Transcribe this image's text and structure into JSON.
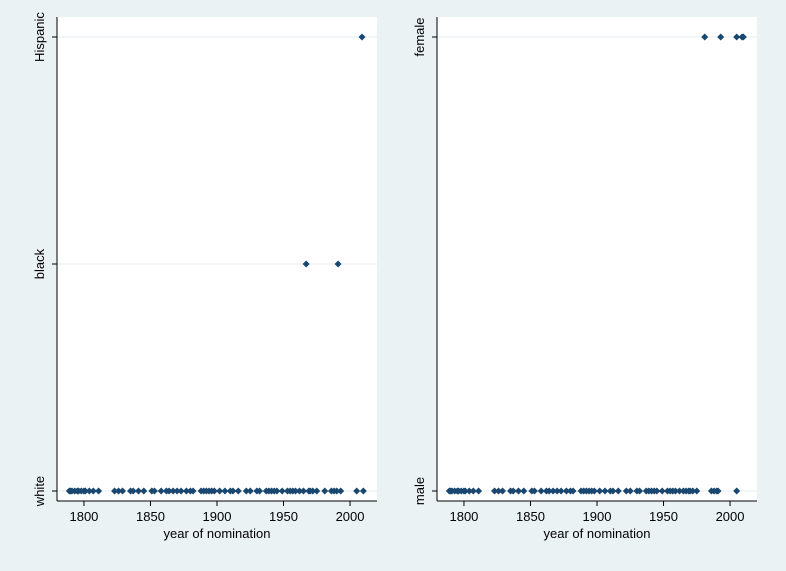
{
  "colors": {
    "background": "#eaf2f3",
    "plot_area": "#ffffff",
    "marker": "#1a476f"
  },
  "chart_data": [
    {
      "type": "scatter",
      "title": "",
      "xlabel": "year of nomination",
      "ylabel": "",
      "xlim": [
        1785,
        2015
      ],
      "xticks": [
        1800,
        1850,
        1900,
        1950,
        2000
      ],
      "y_categories": [
        "white",
        "black",
        "Hispanic"
      ],
      "grid": "horizontal",
      "marker": "diamond",
      "series": [
        {
          "points": [
            {
              "x": 1789,
              "y": "white"
            },
            {
              "x": 1790,
              "y": "white"
            },
            {
              "x": 1791,
              "y": "white"
            },
            {
              "x": 1793,
              "y": "white"
            },
            {
              "x": 1795,
              "y": "white"
            },
            {
              "x": 1796,
              "y": "white"
            },
            {
              "x": 1798,
              "y": "white"
            },
            {
              "x": 1800,
              "y": "white"
            },
            {
              "x": 1801,
              "y": "white"
            },
            {
              "x": 1804,
              "y": "white"
            },
            {
              "x": 1807,
              "y": "white"
            },
            {
              "x": 1811,
              "y": "white"
            },
            {
              "x": 1823,
              "y": "white"
            },
            {
              "x": 1826,
              "y": "white"
            },
            {
              "x": 1829,
              "y": "white"
            },
            {
              "x": 1835,
              "y": "white"
            },
            {
              "x": 1837,
              "y": "white"
            },
            {
              "x": 1841,
              "y": "white"
            },
            {
              "x": 1845,
              "y": "white"
            },
            {
              "x": 1851,
              "y": "white"
            },
            {
              "x": 1853,
              "y": "white"
            },
            {
              "x": 1858,
              "y": "white"
            },
            {
              "x": 1862,
              "y": "white"
            },
            {
              "x": 1864,
              "y": "white"
            },
            {
              "x": 1867,
              "y": "white"
            },
            {
              "x": 1870,
              "y": "white"
            },
            {
              "x": 1873,
              "y": "white"
            },
            {
              "x": 1877,
              "y": "white"
            },
            {
              "x": 1880,
              "y": "white"
            },
            {
              "x": 1882,
              "y": "white"
            },
            {
              "x": 1888,
              "y": "white"
            },
            {
              "x": 1890,
              "y": "white"
            },
            {
              "x": 1892,
              "y": "white"
            },
            {
              "x": 1894,
              "y": "white"
            },
            {
              "x": 1896,
              "y": "white"
            },
            {
              "x": 1898,
              "y": "white"
            },
            {
              "x": 1902,
              "y": "white"
            },
            {
              "x": 1906,
              "y": "white"
            },
            {
              "x": 1910,
              "y": "white"
            },
            {
              "x": 1912,
              "y": "white"
            },
            {
              "x": 1916,
              "y": "white"
            },
            {
              "x": 1922,
              "y": "white"
            },
            {
              "x": 1925,
              "y": "white"
            },
            {
              "x": 1930,
              "y": "white"
            },
            {
              "x": 1932,
              "y": "white"
            },
            {
              "x": 1937,
              "y": "white"
            },
            {
              "x": 1939,
              "y": "white"
            },
            {
              "x": 1941,
              "y": "white"
            },
            {
              "x": 1943,
              "y": "white"
            },
            {
              "x": 1945,
              "y": "white"
            },
            {
              "x": 1949,
              "y": "white"
            },
            {
              "x": 1953,
              "y": "white"
            },
            {
              "x": 1955,
              "y": "white"
            },
            {
              "x": 1957,
              "y": "white"
            },
            {
              "x": 1959,
              "y": "white"
            },
            {
              "x": 1962,
              "y": "white"
            },
            {
              "x": 1965,
              "y": "white"
            },
            {
              "x": 1969,
              "y": "white"
            },
            {
              "x": 1970,
              "y": "white"
            },
            {
              "x": 1972,
              "y": "white"
            },
            {
              "x": 1975,
              "y": "white"
            },
            {
              "x": 1981,
              "y": "white"
            },
            {
              "x": 1986,
              "y": "white"
            },
            {
              "x": 1988,
              "y": "white"
            },
            {
              "x": 1990,
              "y": "white"
            },
            {
              "x": 1993,
              "y": "white"
            },
            {
              "x": 2005,
              "y": "white"
            },
            {
              "x": 2010,
              "y": "white"
            },
            {
              "x": 1967,
              "y": "black"
            },
            {
              "x": 1991,
              "y": "black"
            },
            {
              "x": 2009,
              "y": "Hispanic"
            }
          ]
        }
      ]
    },
    {
      "type": "scatter",
      "title": "",
      "xlabel": "year of nomination",
      "ylabel": "",
      "xlim": [
        1785,
        2015
      ],
      "xticks": [
        1800,
        1850,
        1900,
        1950,
        2000
      ],
      "y_categories": [
        "male",
        "female"
      ],
      "grid": "horizontal",
      "marker": "diamond",
      "series": [
        {
          "points": [
            {
              "x": 1789,
              "y": "male"
            },
            {
              "x": 1790,
              "y": "male"
            },
            {
              "x": 1791,
              "y": "male"
            },
            {
              "x": 1793,
              "y": "male"
            },
            {
              "x": 1795,
              "y": "male"
            },
            {
              "x": 1796,
              "y": "male"
            },
            {
              "x": 1798,
              "y": "male"
            },
            {
              "x": 1800,
              "y": "male"
            },
            {
              "x": 1801,
              "y": "male"
            },
            {
              "x": 1804,
              "y": "male"
            },
            {
              "x": 1807,
              "y": "male"
            },
            {
              "x": 1811,
              "y": "male"
            },
            {
              "x": 1823,
              "y": "male"
            },
            {
              "x": 1826,
              "y": "male"
            },
            {
              "x": 1829,
              "y": "male"
            },
            {
              "x": 1835,
              "y": "male"
            },
            {
              "x": 1837,
              "y": "male"
            },
            {
              "x": 1841,
              "y": "male"
            },
            {
              "x": 1845,
              "y": "male"
            },
            {
              "x": 1851,
              "y": "male"
            },
            {
              "x": 1853,
              "y": "male"
            },
            {
              "x": 1858,
              "y": "male"
            },
            {
              "x": 1862,
              "y": "male"
            },
            {
              "x": 1864,
              "y": "male"
            },
            {
              "x": 1867,
              "y": "male"
            },
            {
              "x": 1870,
              "y": "male"
            },
            {
              "x": 1873,
              "y": "male"
            },
            {
              "x": 1877,
              "y": "male"
            },
            {
              "x": 1880,
              "y": "male"
            },
            {
              "x": 1882,
              "y": "male"
            },
            {
              "x": 1888,
              "y": "male"
            },
            {
              "x": 1890,
              "y": "male"
            },
            {
              "x": 1892,
              "y": "male"
            },
            {
              "x": 1894,
              "y": "male"
            },
            {
              "x": 1896,
              "y": "male"
            },
            {
              "x": 1898,
              "y": "male"
            },
            {
              "x": 1902,
              "y": "male"
            },
            {
              "x": 1906,
              "y": "male"
            },
            {
              "x": 1910,
              "y": "male"
            },
            {
              "x": 1912,
              "y": "male"
            },
            {
              "x": 1916,
              "y": "male"
            },
            {
              "x": 1922,
              "y": "male"
            },
            {
              "x": 1925,
              "y": "male"
            },
            {
              "x": 1930,
              "y": "male"
            },
            {
              "x": 1932,
              "y": "male"
            },
            {
              "x": 1937,
              "y": "male"
            },
            {
              "x": 1939,
              "y": "male"
            },
            {
              "x": 1941,
              "y": "male"
            },
            {
              "x": 1943,
              "y": "male"
            },
            {
              "x": 1945,
              "y": "male"
            },
            {
              "x": 1949,
              "y": "male"
            },
            {
              "x": 1953,
              "y": "male"
            },
            {
              "x": 1955,
              "y": "male"
            },
            {
              "x": 1957,
              "y": "male"
            },
            {
              "x": 1959,
              "y": "male"
            },
            {
              "x": 1962,
              "y": "male"
            },
            {
              "x": 1965,
              "y": "male"
            },
            {
              "x": 1967,
              "y": "male"
            },
            {
              "x": 1969,
              "y": "male"
            },
            {
              "x": 1970,
              "y": "male"
            },
            {
              "x": 1972,
              "y": "male"
            },
            {
              "x": 1975,
              "y": "male"
            },
            {
              "x": 1986,
              "y": "male"
            },
            {
              "x": 1988,
              "y": "male"
            },
            {
              "x": 1990,
              "y": "male"
            },
            {
              "x": 1991,
              "y": "male"
            },
            {
              "x": 2005,
              "y": "male"
            },
            {
              "x": 1981,
              "y": "female"
            },
            {
              "x": 1993,
              "y": "female"
            },
            {
              "x": 2005,
              "y": "female"
            },
            {
              "x": 2009,
              "y": "female"
            },
            {
              "x": 2010,
              "y": "female"
            }
          ]
        }
      ]
    }
  ]
}
